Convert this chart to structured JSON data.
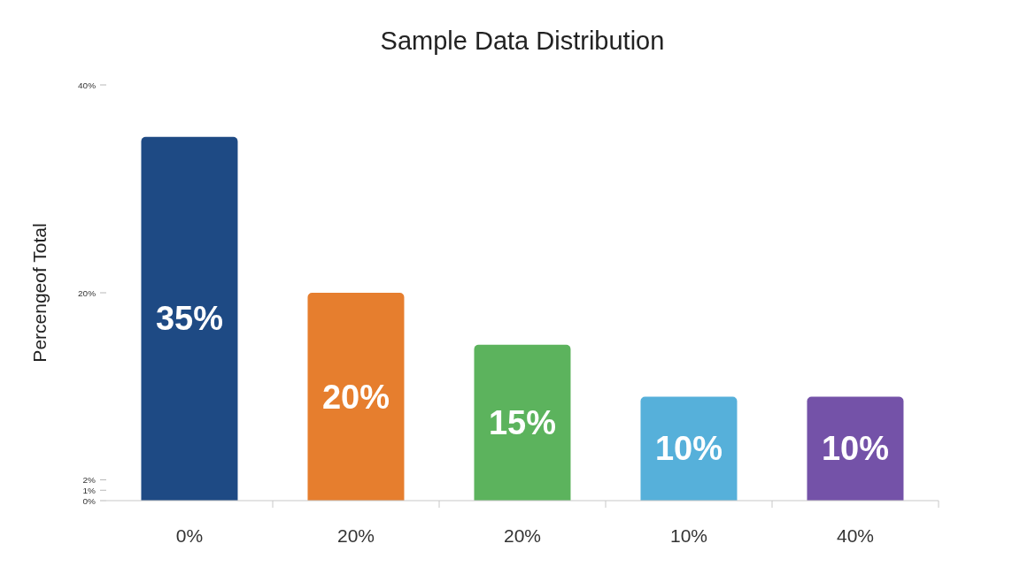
{
  "chart_data": {
    "type": "bar",
    "title": "Sample Data Distribution",
    "ylabel": "Percengeof Total",
    "categories": [
      "0%",
      "20%",
      "20%",
      "10%",
      "40%"
    ],
    "values": [
      35,
      20,
      15,
      10,
      10
    ],
    "colors": [
      "#1e4a84",
      "#e67e2e",
      "#5cb35d",
      "#56b0da",
      "#7452a8"
    ],
    "value_labels": [
      "35%",
      "20%",
      "15%",
      "10%",
      "10%"
    ],
    "ylim": [
      0,
      40
    ],
    "yticks": [
      {
        "value": 0,
        "label": "0%"
      },
      {
        "value": 1,
        "label": "1%"
      },
      {
        "value": 2,
        "label": "2%"
      },
      {
        "value": 20,
        "label": "20%"
      },
      {
        "value": 40,
        "label": "40%"
      }
    ]
  }
}
